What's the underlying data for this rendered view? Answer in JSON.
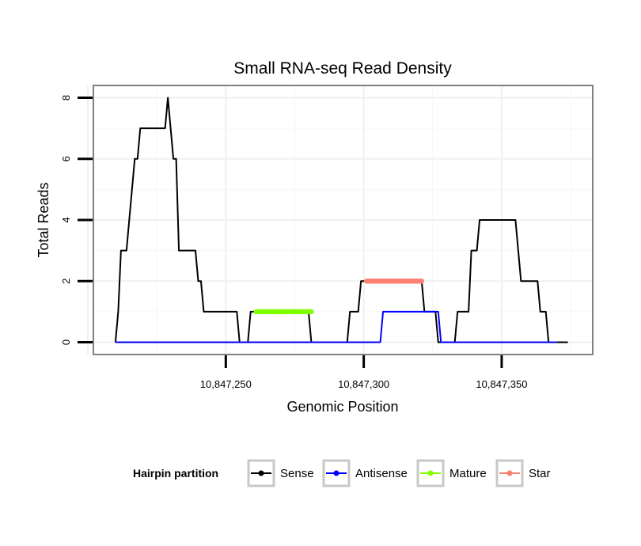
{
  "chart_data": {
    "type": "line",
    "title": "Small RNA-seq Read Density",
    "xlabel": "Genomic Position",
    "ylabel": "Total Reads",
    "xlim": [
      10847202,
      10847383
    ],
    "ylim": [
      -0.4,
      8.4
    ],
    "x_ticks": [
      10847250,
      10847300,
      10847350
    ],
    "x_tick_labels": [
      "10,847,250",
      "10,847,300",
      "10,847,350"
    ],
    "y_ticks": [
      0,
      2,
      4,
      6,
      8
    ],
    "y_tick_labels": [
      "0",
      "2",
      "4",
      "6",
      "8"
    ],
    "legend_title": "Hairpin partition",
    "legend_position": "bottom",
    "series": [
      {
        "name": "Sense",
        "color": "#000000",
        "points": [
          [
            10847210,
            0
          ],
          [
            10847211,
            1
          ],
          [
            10847212,
            3
          ],
          [
            10847214,
            3
          ],
          [
            10847216,
            5
          ],
          [
            10847217,
            6
          ],
          [
            10847218,
            6
          ],
          [
            10847219,
            7
          ],
          [
            10847228,
            7
          ],
          [
            10847229,
            8
          ],
          [
            10847231,
            6
          ],
          [
            10847232,
            6
          ],
          [
            10847233,
            3
          ],
          [
            10847239,
            3
          ],
          [
            10847240,
            2
          ],
          [
            10847241,
            2
          ],
          [
            10847242,
            1
          ],
          [
            10847254,
            1
          ],
          [
            10847255,
            0
          ],
          [
            10847258,
            0
          ],
          [
            10847259,
            1
          ],
          [
            10847264,
            1
          ],
          [
            10847280,
            1
          ],
          [
            10847281,
            0
          ],
          [
            10847294,
            0
          ],
          [
            10847295,
            1
          ],
          [
            10847298,
            1
          ],
          [
            10847299,
            2
          ],
          [
            10847321,
            2
          ],
          [
            10847322,
            1
          ],
          [
            10847326,
            1
          ],
          [
            10847327,
            0
          ],
          [
            10847333,
            0
          ],
          [
            10847334,
            1
          ],
          [
            10847338,
            1
          ],
          [
            10847339,
            3
          ],
          [
            10847341,
            3
          ],
          [
            10847342,
            4
          ],
          [
            10847355,
            4
          ],
          [
            10847356,
            3
          ],
          [
            10847357,
            2
          ],
          [
            10847363,
            2
          ],
          [
            10847364,
            1
          ],
          [
            10847366,
            1
          ],
          [
            10847367,
            0
          ],
          [
            10847374,
            0
          ]
        ]
      },
      {
        "name": "Antisense",
        "color": "#0000ff",
        "points": [
          [
            10847210,
            0
          ],
          [
            10847306,
            0
          ],
          [
            10847307,
            1
          ],
          [
            10847327,
            1
          ],
          [
            10847328,
            0
          ],
          [
            10847370,
            0
          ]
        ]
      },
      {
        "name": "Mature",
        "color": "#80ff00",
        "points": [
          [
            10847261,
            1
          ],
          [
            10847281,
            1
          ]
        ]
      },
      {
        "name": "Star",
        "color": "#fa8072",
        "points": [
          [
            10847301,
            2
          ],
          [
            10847321,
            2
          ]
        ]
      }
    ]
  }
}
